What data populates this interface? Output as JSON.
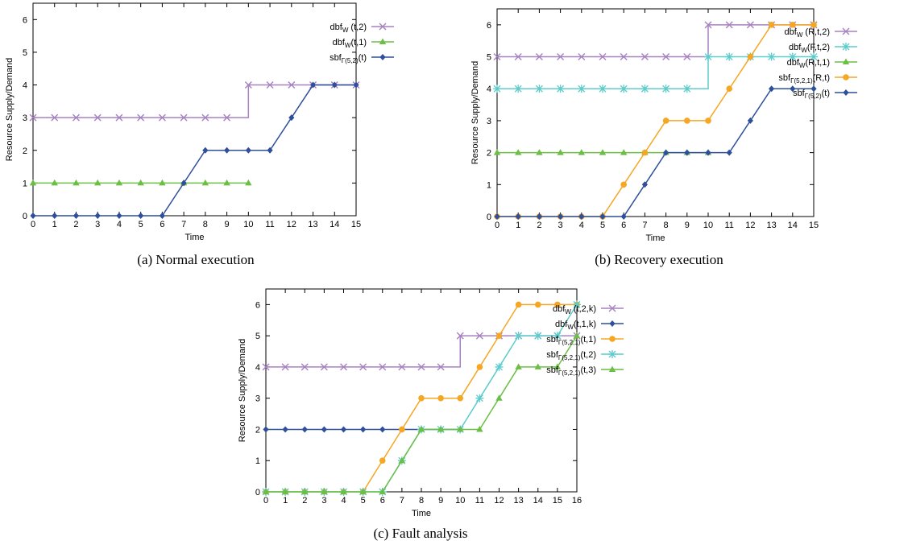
{
  "chart_data": [
    {
      "id": "a",
      "type": "line",
      "caption": "(a) Normal execution",
      "xlabel": "Time",
      "ylabel": "Resource Supply/Demand",
      "xlim": [
        0,
        15
      ],
      "ylim": [
        0,
        6.5
      ],
      "xticks": [
        0,
        1,
        2,
        3,
        4,
        5,
        6,
        7,
        8,
        9,
        10,
        11,
        12,
        13,
        14,
        15
      ],
      "yticks": [
        0,
        1,
        2,
        3,
        4,
        5,
        6
      ],
      "grid": false,
      "legend_position": "right",
      "series": [
        {
          "legend_base": "dbf",
          "legend_sub": "W",
          "legend_rest": " (t,2)",
          "color": "#a682c0",
          "marker": "x",
          "step": true,
          "x": [
            0,
            1,
            2,
            3,
            4,
            5,
            6,
            7,
            8,
            9,
            10,
            11,
            12,
            13,
            14,
            15
          ],
          "y": [
            3,
            3,
            3,
            3,
            3,
            3,
            3,
            3,
            3,
            3,
            4,
            4,
            4,
            4,
            4,
            4
          ]
        },
        {
          "legend_base": "dbf",
          "legend_sub": "W",
          "legend_rest": "(t,1)",
          "color": "#6abf44",
          "marker": "triangle",
          "step": true,
          "x": [
            0,
            1,
            2,
            3,
            4,
            5,
            6,
            7,
            8,
            9,
            10
          ],
          "y": [
            1,
            1,
            1,
            1,
            1,
            1,
            1,
            1,
            1,
            1,
            1
          ]
        },
        {
          "legend_base": "sbf",
          "legend_sub": "Γ(5,2)",
          "legend_rest": "(t)",
          "color": "#2e4f9c",
          "marker": "diamond",
          "step": false,
          "x": [
            0,
            1,
            2,
            3,
            4,
            5,
            6,
            7,
            8,
            9,
            10,
            11,
            12,
            13,
            14,
            15
          ],
          "y": [
            0,
            0,
            0,
            0,
            0,
            0,
            0,
            1,
            2,
            2,
            2,
            2,
            3,
            4,
            4,
            4
          ]
        }
      ]
    },
    {
      "id": "b",
      "type": "line",
      "caption": "(b) Recovery execution",
      "xlabel": "Time",
      "ylabel": "Resource Supply/Demand",
      "xlim": [
        0,
        15
      ],
      "ylim": [
        0,
        6.5
      ],
      "xticks": [
        0,
        1,
        2,
        3,
        4,
        5,
        6,
        7,
        8,
        9,
        10,
        11,
        12,
        13,
        14,
        15
      ],
      "yticks": [
        0,
        1,
        2,
        3,
        4,
        5,
        6
      ],
      "grid": false,
      "legend_position": "right",
      "series": [
        {
          "legend_base": "dbf",
          "legend_sub": "W",
          "legend_rest": " (R,t,2)",
          "color": "#a682c0",
          "marker": "x",
          "step": true,
          "x": [
            0,
            1,
            2,
            3,
            4,
            5,
            6,
            7,
            8,
            9,
            10,
            11,
            12,
            13,
            14,
            15
          ],
          "y": [
            5,
            5,
            5,
            5,
            5,
            5,
            5,
            5,
            5,
            5,
            6,
            6,
            6,
            6,
            6,
            6
          ]
        },
        {
          "legend_base": "dbf",
          "legend_sub": "W",
          "legend_rest": "(F,t,2)",
          "color": "#5ccccc",
          "marker": "star",
          "step": true,
          "x": [
            0,
            1,
            2,
            3,
            4,
            5,
            6,
            7,
            8,
            9,
            10,
            11,
            12,
            13,
            14,
            15
          ],
          "y": [
            4,
            4,
            4,
            4,
            4,
            4,
            4,
            4,
            4,
            4,
            5,
            5,
            5,
            5,
            5,
            5
          ]
        },
        {
          "legend_base": "dbf",
          "legend_sub": "W",
          "legend_rest": "(R,t,1)",
          "color": "#6abf44",
          "marker": "triangle",
          "step": true,
          "x": [
            0,
            1,
            2,
            3,
            4,
            5,
            6,
            7,
            8,
            9,
            10
          ],
          "y": [
            2,
            2,
            2,
            2,
            2,
            2,
            2,
            2,
            2,
            2,
            2
          ]
        },
        {
          "legend_base": "sbf",
          "legend_sub": "Γ(5,2,1)",
          "legend_rest": "(R,t)",
          "color": "#f5a623",
          "marker": "circle",
          "step": false,
          "x": [
            0,
            1,
            2,
            3,
            4,
            5,
            6,
            7,
            8,
            9,
            10,
            11,
            12,
            13,
            14,
            15
          ],
          "y": [
            0,
            0,
            0,
            0,
            0,
            0,
            1,
            2,
            3,
            3,
            3,
            4,
            5,
            6,
            6,
            6
          ]
        },
        {
          "legend_base": "sbf",
          "legend_sub": "Γ(5,2)",
          "legend_rest": "(t)",
          "color": "#2e4f9c",
          "marker": "diamond",
          "step": false,
          "x": [
            0,
            1,
            2,
            3,
            4,
            5,
            6,
            7,
            8,
            9,
            10,
            11,
            12,
            13,
            14,
            15
          ],
          "y": [
            0,
            0,
            0,
            0,
            0,
            0,
            0,
            1,
            2,
            2,
            2,
            2,
            3,
            4,
            4,
            4
          ]
        }
      ]
    },
    {
      "id": "c",
      "type": "line",
      "caption": "(c) Fault analysis",
      "xlabel": "Time",
      "ylabel": "Resource Supply/Demand",
      "xlim": [
        0,
        16
      ],
      "ylim": [
        0,
        6.5
      ],
      "xticks": [
        0,
        1,
        2,
        3,
        4,
        5,
        6,
        7,
        8,
        9,
        10,
        11,
        12,
        13,
        14,
        15,
        16
      ],
      "yticks": [
        0,
        1,
        2,
        3,
        4,
        5,
        6
      ],
      "grid": false,
      "legend_position": "right",
      "series": [
        {
          "legend_base": "dbf",
          "legend_sub": "W",
          "legend_rest": " (t,2,k)",
          "color": "#a682c0",
          "marker": "x",
          "step": true,
          "x": [
            0,
            1,
            2,
            3,
            4,
            5,
            6,
            7,
            8,
            9,
            10,
            11,
            12,
            13,
            14,
            15,
            16
          ],
          "y": [
            4,
            4,
            4,
            4,
            4,
            4,
            4,
            4,
            4,
            4,
            5,
            5,
            5,
            5,
            5,
            5,
            5
          ]
        },
        {
          "legend_base": "dbf",
          "legend_sub": "W",
          "legend_rest": "(t,1,k)",
          "color": "#2e4f9c",
          "marker": "diamond",
          "step": true,
          "x": [
            0,
            1,
            2,
            3,
            4,
            5,
            6,
            7,
            8,
            9,
            10
          ],
          "y": [
            2,
            2,
            2,
            2,
            2,
            2,
            2,
            2,
            2,
            2,
            2
          ]
        },
        {
          "legend_base": "sbf",
          "legend_sub": "Γ(5,2,1)",
          "legend_rest": "(t,1)",
          "color": "#f5a623",
          "marker": "circle",
          "step": false,
          "x": [
            0,
            1,
            2,
            3,
            4,
            5,
            6,
            7,
            8,
            9,
            10,
            11,
            12,
            13,
            14,
            15,
            16
          ],
          "y": [
            0,
            0,
            0,
            0,
            0,
            0,
            1,
            2,
            3,
            3,
            3,
            4,
            5,
            6,
            6,
            6,
            6
          ]
        },
        {
          "legend_base": "sbf",
          "legend_sub": "Γ(5,2,1)",
          "legend_rest": "(t,2)",
          "color": "#5ccccc",
          "marker": "star",
          "step": false,
          "x": [
            0,
            1,
            2,
            3,
            4,
            5,
            6,
            7,
            8,
            9,
            10,
            11,
            12,
            13,
            14,
            15,
            16
          ],
          "y": [
            0,
            0,
            0,
            0,
            0,
            0,
            0,
            1,
            2,
            2,
            2,
            3,
            4,
            5,
            5,
            5,
            6
          ]
        },
        {
          "legend_base": "sbf",
          "legend_sub": "Γ(5,2,1)",
          "legend_rest": "(t,3)",
          "color": "#6abf44",
          "marker": "triangle",
          "step": false,
          "x": [
            0,
            1,
            2,
            3,
            4,
            5,
            6,
            7,
            8,
            9,
            10,
            11,
            12,
            13,
            14,
            15,
            16
          ],
          "y": [
            0,
            0,
            0,
            0,
            0,
            0,
            0,
            1,
            2,
            2,
            2,
            2,
            3,
            4,
            4,
            4,
            5
          ]
        }
      ]
    }
  ]
}
